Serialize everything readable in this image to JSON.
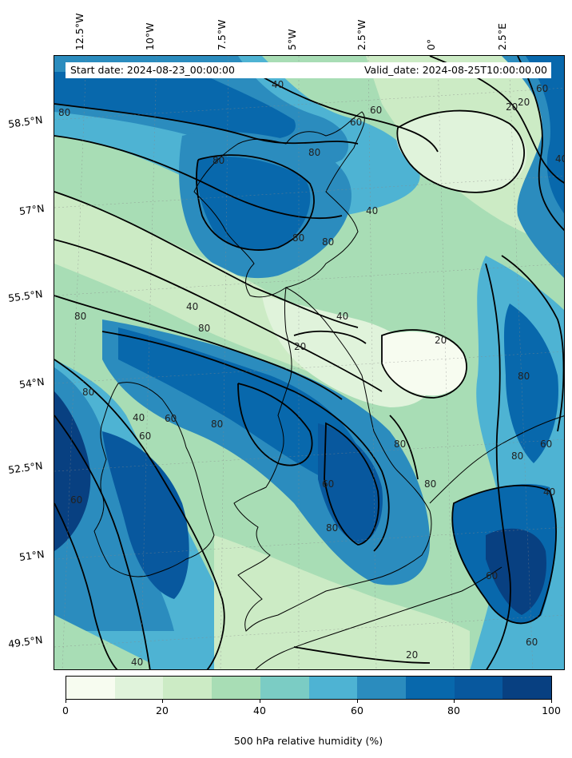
{
  "header": {
    "start_date": "Start date: 2024-08-23_00:00:00",
    "valid_date": "Valid_date: 2024-08-25T10:00:00.00"
  },
  "axes": {
    "longitude_labels": [
      "12.5°W",
      "10°W",
      "7.5°W",
      "5°W",
      "2.5°W",
      "0°",
      "2.5°E"
    ],
    "latitude_labels": [
      "58.5°N",
      "57°N",
      "55.5°N",
      "54°N",
      "52.5°N",
      "51°N",
      "49.5°N"
    ]
  },
  "contour_labels": [
    "80",
    "40",
    "60",
    "60",
    "20",
    "60",
    "40",
    "80",
    "80",
    "80",
    "80",
    "40",
    "20",
    "40",
    "80",
    "40",
    "20",
    "20",
    "80",
    "80",
    "40",
    "60",
    "80",
    "80",
    "60",
    "80",
    "60",
    "80",
    "80",
    "60",
    "40",
    "60",
    "60",
    "40",
    "20",
    "60",
    "80"
  ],
  "colorbar": {
    "title": "500 hPa relative humidity (%)",
    "ticks": [
      "0",
      "20",
      "40",
      "60",
      "80",
      "100"
    ],
    "colors": [
      "#f7fcf0",
      "#e0f3db",
      "#ccebc5",
      "#a8ddb5",
      "#7bccc4",
      "#4eb3d3",
      "#2b8cbe",
      "#0868ac",
      "#08589e",
      "#084081"
    ]
  }
}
